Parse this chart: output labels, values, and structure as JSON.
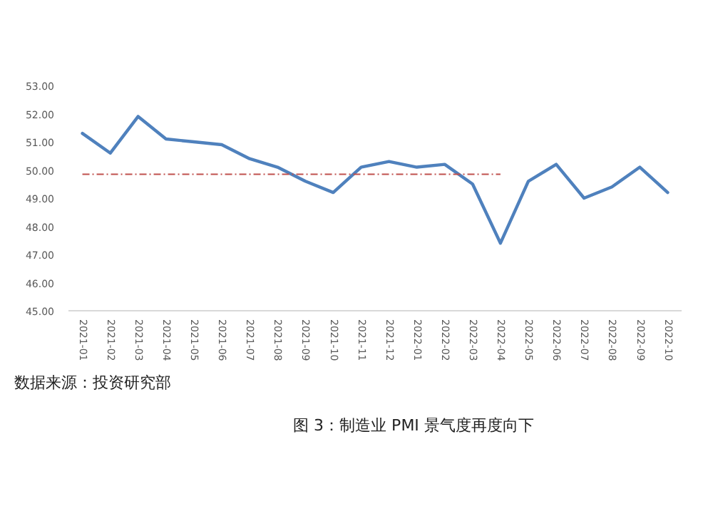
{
  "chart_data": {
    "type": "line",
    "title": "图 3：制造业 PMI 景气度再度向下",
    "annotations": [
      "数据来源：投资研究部"
    ],
    "categories": [
      "2021-01",
      "2021-02",
      "2021-03",
      "2021-04",
      "2021-05",
      "2021-06",
      "2021-07",
      "2021-08",
      "2021-09",
      "2021-10",
      "2021-11",
      "2021-12",
      "2022-01",
      "2022-02",
      "2022-03",
      "2022-04",
      "2022-05",
      "2022-06",
      "2022-07",
      "2022-08",
      "2022-09",
      "2022-10"
    ],
    "series": [
      {
        "color": "#4f81bd",
        "line_style": "solid",
        "values": [
          51.3,
          50.6,
          51.9,
          51.1,
          51.0,
          50.9,
          50.4,
          50.1,
          49.6,
          49.2,
          50.1,
          50.3,
          50.1,
          50.2,
          49.5,
          47.4,
          49.6,
          50.2,
          49.0,
          49.4,
          50.1,
          49.2
        ]
      },
      {
        "color": "#c0504d",
        "line_style": "dashed",
        "values": [
          49.85,
          49.85,
          49.85,
          49.85,
          49.85,
          49.85,
          49.85,
          49.85,
          49.85,
          49.85,
          49.85,
          49.85,
          49.85,
          49.85,
          49.85,
          49.85,
          null,
          null,
          null,
          null,
          null,
          null
        ]
      }
    ],
    "ylim": [
      45,
      53
    ],
    "yticks": [
      {
        "value": 45,
        "label": "45.00"
      },
      {
        "value": 46,
        "label": "46.00"
      },
      {
        "value": 47,
        "label": "47.00"
      },
      {
        "value": 48,
        "label": "48.00"
      },
      {
        "value": 49,
        "label": "49.00"
      },
      {
        "value": 50,
        "label": "50.00"
      },
      {
        "value": 51,
        "label": "51.00"
      },
      {
        "value": 52,
        "label": "52.00"
      },
      {
        "value": 53,
        "label": "53.00"
      }
    ],
    "grid": false
  }
}
